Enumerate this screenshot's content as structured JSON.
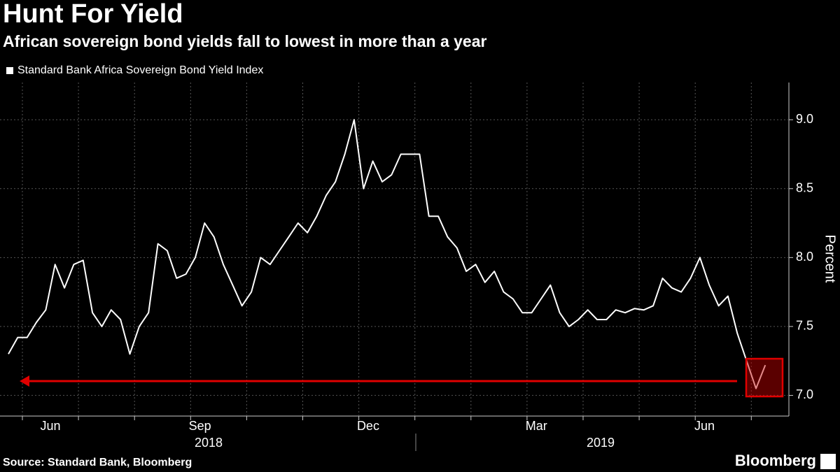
{
  "chart_data": {
    "type": "line",
    "title": "Hunt For Yield",
    "subtitle": "African sovereign bond yields fall to lowest in more than a year",
    "source": "Source: Standard Bank, Bloomberg",
    "brand": "Bloomberg",
    "y_axis_label": "Percent",
    "year_labels": [
      "2018",
      "2019"
    ],
    "categories": [
      null,
      null,
      null,
      null,
      "Jun",
      null,
      null,
      null,
      null,
      null,
      null,
      null,
      null,
      null,
      null,
      null,
      null,
      null,
      null,
      null,
      "Sep",
      null,
      null,
      null,
      null,
      null,
      null,
      null,
      null,
      null,
      null,
      null,
      null,
      null,
      null,
      null,
      null,
      null,
      "Dec",
      null,
      null,
      null,
      null,
      null,
      null,
      null,
      null,
      null,
      null,
      null,
      null,
      null,
      null,
      null,
      null,
      null,
      "Mar",
      null,
      null,
      null,
      null,
      null,
      null,
      null,
      null,
      null,
      null,
      null,
      null,
      null,
      null,
      null,
      null,
      null,
      "Jun",
      null,
      null,
      null,
      null,
      null,
      null,
      null
    ],
    "series": [
      {
        "name": "Standard Bank Africa Sovereign Bond Yield Index",
        "color": "#ffffff",
        "values": [
          7.3,
          7.42,
          7.42,
          7.53,
          7.62,
          7.95,
          7.78,
          7.95,
          7.98,
          7.6,
          7.5,
          7.62,
          7.55,
          7.3,
          7.5,
          7.6,
          8.1,
          8.05,
          7.85,
          7.88,
          8.0,
          8.25,
          8.15,
          7.95,
          7.8,
          7.65,
          7.75,
          8.0,
          7.95,
          8.05,
          8.15,
          8.25,
          8.18,
          8.3,
          8.45,
          8.55,
          8.75,
          9.0,
          8.5,
          8.7,
          8.55,
          8.6,
          8.75,
          8.75,
          8.75,
          8.3,
          8.3,
          8.15,
          8.07,
          7.9,
          7.95,
          7.82,
          7.9,
          7.75,
          7.7,
          7.6,
          7.6,
          7.7,
          7.8,
          7.6,
          7.5,
          7.55,
          7.62,
          7.55,
          7.55,
          7.62,
          7.6,
          7.63,
          7.62,
          7.65,
          7.85,
          7.78,
          7.75,
          7.85,
          8.0,
          7.8,
          7.65,
          7.72,
          7.45,
          7.25,
          7.05,
          7.22
        ]
      }
    ],
    "ylim": [
      6.85,
      9.27
    ],
    "yticks": [
      {
        "value": 7,
        "label": "7.0"
      },
      {
        "value": 7.5,
        "label": "7.5"
      },
      {
        "value": 8,
        "label": "8.0"
      },
      {
        "value": 8.5,
        "label": "8.5"
      },
      {
        "value": 9,
        "label": "9.0"
      }
    ],
    "grid": true
  }
}
